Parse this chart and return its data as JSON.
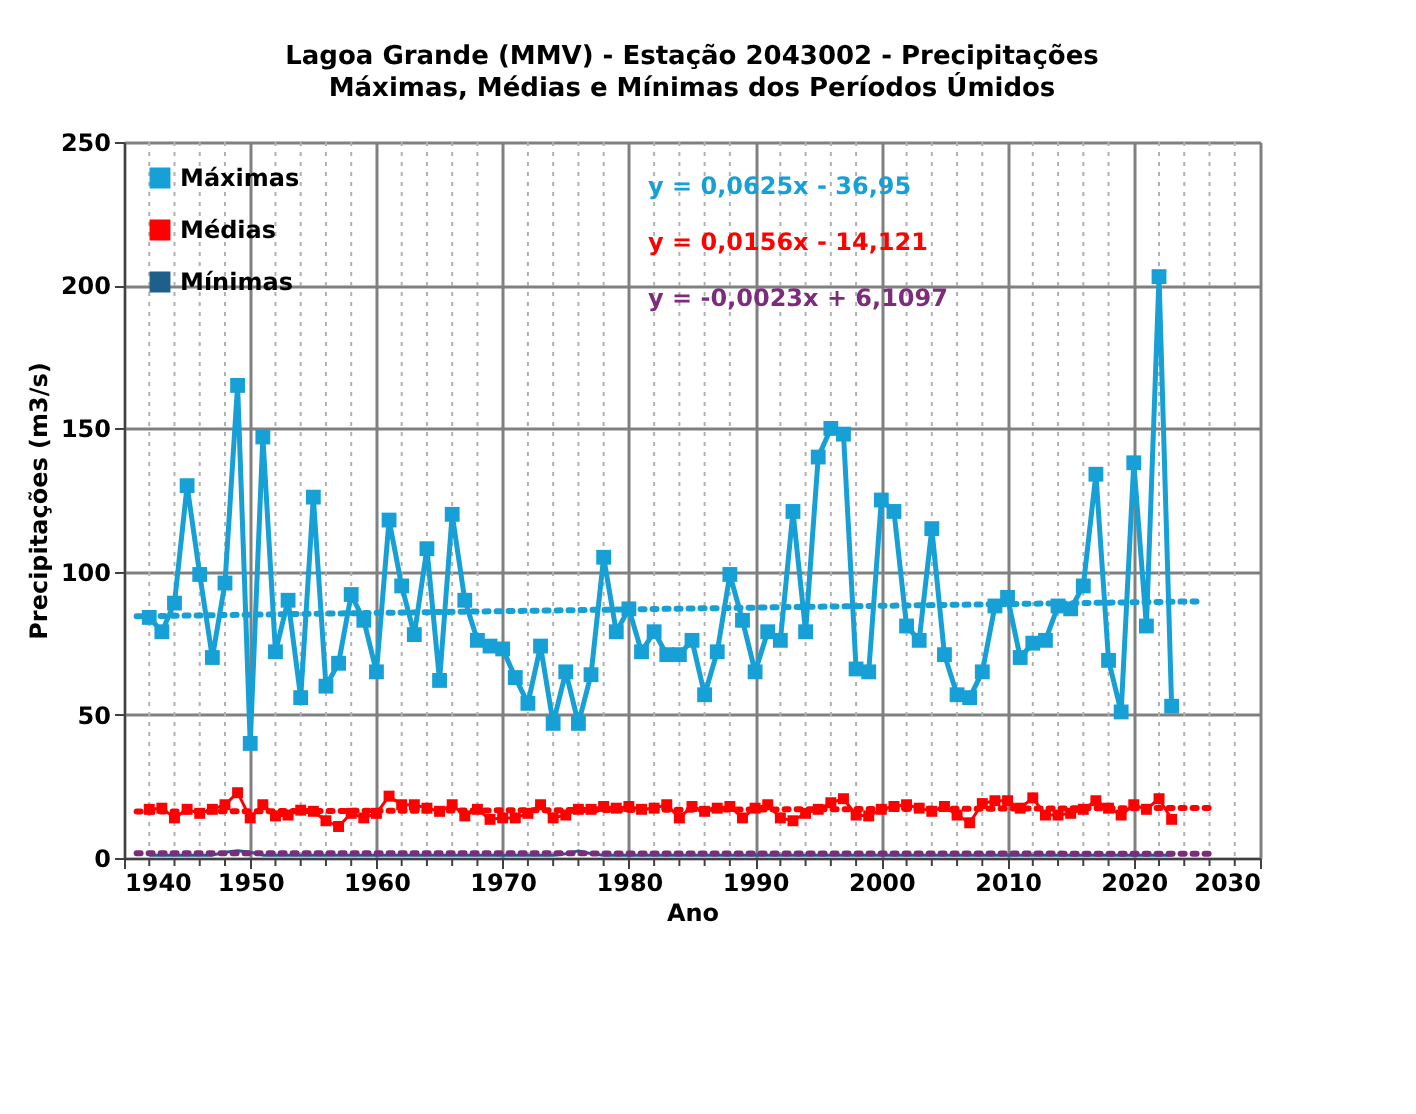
{
  "chart_data": {
    "type": "line",
    "title": "Lagoa Grande (MMV) -  Estação 2043002 - Precipitações",
    "subtitle": "Máximas, Médias e Mínimas dos Períodos Úmidos",
    "xlabel": "Ano",
    "ylabel": "Precipitações (m3/s)",
    "x": [
      1942,
      1943,
      1944,
      1945,
      1946,
      1947,
      1948,
      1949,
      1950,
      1951,
      1952,
      1953,
      1954,
      1955,
      1956,
      1957,
      1958,
      1959,
      1960,
      1961,
      1962,
      1963,
      1964,
      1965,
      1966,
      1967,
      1968,
      1969,
      1970,
      1971,
      1972,
      1973,
      1974,
      1975,
      1976,
      1977,
      1978,
      1979,
      1980,
      1981,
      1982,
      1983,
      1984,
      1985,
      1986,
      1987,
      1988,
      1989,
      1990,
      1991,
      1992,
      1993,
      1994,
      1995,
      1996,
      1997,
      1998,
      1999,
      2000,
      2001,
      2002,
      2003,
      2004,
      2005,
      2006,
      2007,
      2008,
      2009,
      2010,
      2011,
      2012,
      2013,
      2014,
      2015,
      2016,
      2017,
      2018,
      2019,
      2020,
      2021,
      2022,
      2023
    ],
    "series": [
      {
        "name": "Máximas",
        "color": "#16a0d6",
        "marker": "square",
        "values": [
          84,
          79,
          89,
          130,
          99,
          70,
          96,
          165,
          40,
          147,
          72,
          90,
          56,
          126,
          60,
          68,
          92,
          83,
          65,
          118,
          95,
          78,
          108,
          62,
          120,
          90,
          76,
          74,
          73,
          63,
          54,
          74,
          47,
          65,
          47,
          64,
          105,
          79,
          87,
          72,
          79,
          71,
          71,
          76,
          57,
          72,
          99,
          83,
          65,
          79,
          76,
          121,
          79,
          140,
          150,
          148,
          66,
          65,
          125,
          121,
          81,
          76,
          115,
          71,
          57,
          56,
          65,
          88,
          91,
          70,
          75,
          76,
          88,
          87,
          95,
          134,
          69,
          51,
          138,
          81,
          203,
          53
        ]
      },
      {
        "name": "Médias",
        "color": "#ff0000",
        "marker": "square",
        "values": [
          17,
          17.4,
          14,
          17,
          15.6,
          17,
          18.6,
          22.8,
          14,
          18.6,
          14.7,
          15,
          16.7,
          16.3,
          13,
          11,
          15.6,
          14,
          15.6,
          21.6,
          18.6,
          18.6,
          17.4,
          16.3,
          18.6,
          14.7,
          17,
          13.5,
          14,
          14,
          15.6,
          18.6,
          14,
          15,
          17,
          17,
          18,
          17.4,
          18,
          17,
          17.4,
          18.6,
          14,
          18,
          16.3,
          17.4,
          18,
          14,
          17.4,
          18.6,
          14,
          13,
          15.6,
          17,
          19.3,
          20.7,
          15,
          14.7,
          17,
          18,
          18.6,
          17.4,
          16.3,
          18,
          15,
          12.3,
          19,
          20,
          20,
          17.4,
          21,
          15,
          15,
          15.6,
          17,
          20,
          17.4,
          15,
          18.6,
          17,
          20.7,
          13.5
        ]
      },
      {
        "name": "Mínimas",
        "color": "#1f5f8b",
        "marker": "none",
        "values": [
          1,
          1,
          1,
          1,
          1,
          1,
          2,
          2.5,
          2,
          1,
          1,
          1,
          1,
          1,
          1,
          1,
          1,
          1,
          1,
          1,
          1,
          1,
          1,
          1,
          1,
          1,
          1,
          1,
          1,
          1,
          1,
          1,
          1,
          1.5,
          2.5,
          1.5,
          1,
          1,
          1,
          1,
          1,
          1,
          1,
          1,
          1,
          1,
          1,
          1,
          1,
          1,
          1,
          1,
          1,
          1,
          1,
          1,
          1,
          1,
          1,
          1,
          1,
          1,
          1,
          1,
          1,
          1,
          1,
          1,
          1,
          1,
          1,
          1,
          1,
          1,
          1,
          1,
          1,
          1,
          1,
          1,
          1,
          1
        ]
      },
      {
        "type": "line",
        "color": "#16a0d6",
        "line_style": "dotted",
        "marker": "none",
        "x": [
          1941,
          2025
        ],
        "values": [
          84.4,
          89.6
        ]
      },
      {
        "type": "line",
        "color": "#ff0000",
        "line_style": "dotted",
        "marker": "none",
        "x": [
          1941,
          2026
        ],
        "values": [
          16.2,
          17.5
        ]
      },
      {
        "type": "line",
        "color": "#7b2d7b",
        "line_style": "dotted",
        "marker": "none",
        "x": [
          1941,
          2026
        ],
        "values": [
          1.7,
          1.5
        ]
      }
    ],
    "annotations": [
      "y = 0,0625x - 36,95",
      "y = 0,0156x - 14,121",
      "y = -0,0023x + 6,1097"
    ],
    "xlim": [
      1940,
      2030
    ],
    "xticks": [
      1940,
      {
        "value": 1942,
        "label": null
      },
      {
        "value": 1944,
        "label": null
      },
      {
        "value": 1946,
        "label": null
      },
      {
        "value": 1948,
        "label": null
      },
      1950,
      {
        "value": 1952,
        "label": null
      },
      {
        "value": 1954,
        "label": null
      },
      {
        "value": 1956,
        "label": null
      },
      {
        "value": 1958,
        "label": null
      },
      1960,
      {
        "value": 1962,
        "label": null
      },
      {
        "value": 1964,
        "label": null
      },
      {
        "value": 1966,
        "label": null
      },
      {
        "value": 1968,
        "label": null
      },
      1970,
      {
        "value": 1972,
        "label": null
      },
      {
        "value": 1974,
        "label": null
      },
      {
        "value": 1976,
        "label": null
      },
      {
        "value": 1978,
        "label": null
      },
      1980,
      {
        "value": 1982,
        "label": null
      },
      {
        "value": 1984,
        "label": null
      },
      {
        "value": 1986,
        "label": null
      },
      {
        "value": 1988,
        "label": null
      },
      1990,
      {
        "value": 1992,
        "label": null
      },
      {
        "value": 1994,
        "label": null
      },
      {
        "value": 1996,
        "label": null
      },
      {
        "value": 1998,
        "label": null
      },
      2000,
      {
        "value": 2002,
        "label": null
      },
      {
        "value": 2004,
        "label": null
      },
      {
        "value": 2006,
        "label": null
      },
      {
        "value": 2008,
        "label": null
      },
      2010,
      {
        "value": 2012,
        "label": null
      },
      {
        "value": 2014,
        "label": null
      },
      {
        "value": 2016,
        "label": null
      },
      {
        "value": 2018,
        "label": null
      },
      2020,
      {
        "value": 2022,
        "label": null
      },
      {
        "value": 2024,
        "label": null
      },
      {
        "value": 2026,
        "label": null
      },
      {
        "value": 2028,
        "label": null
      },
      2030
    ],
    "ylim": [
      0,
      250
    ],
    "yticks": [
      0,
      50,
      100,
      150,
      200,
      250
    ],
    "grid": true,
    "legend": "top left"
  }
}
